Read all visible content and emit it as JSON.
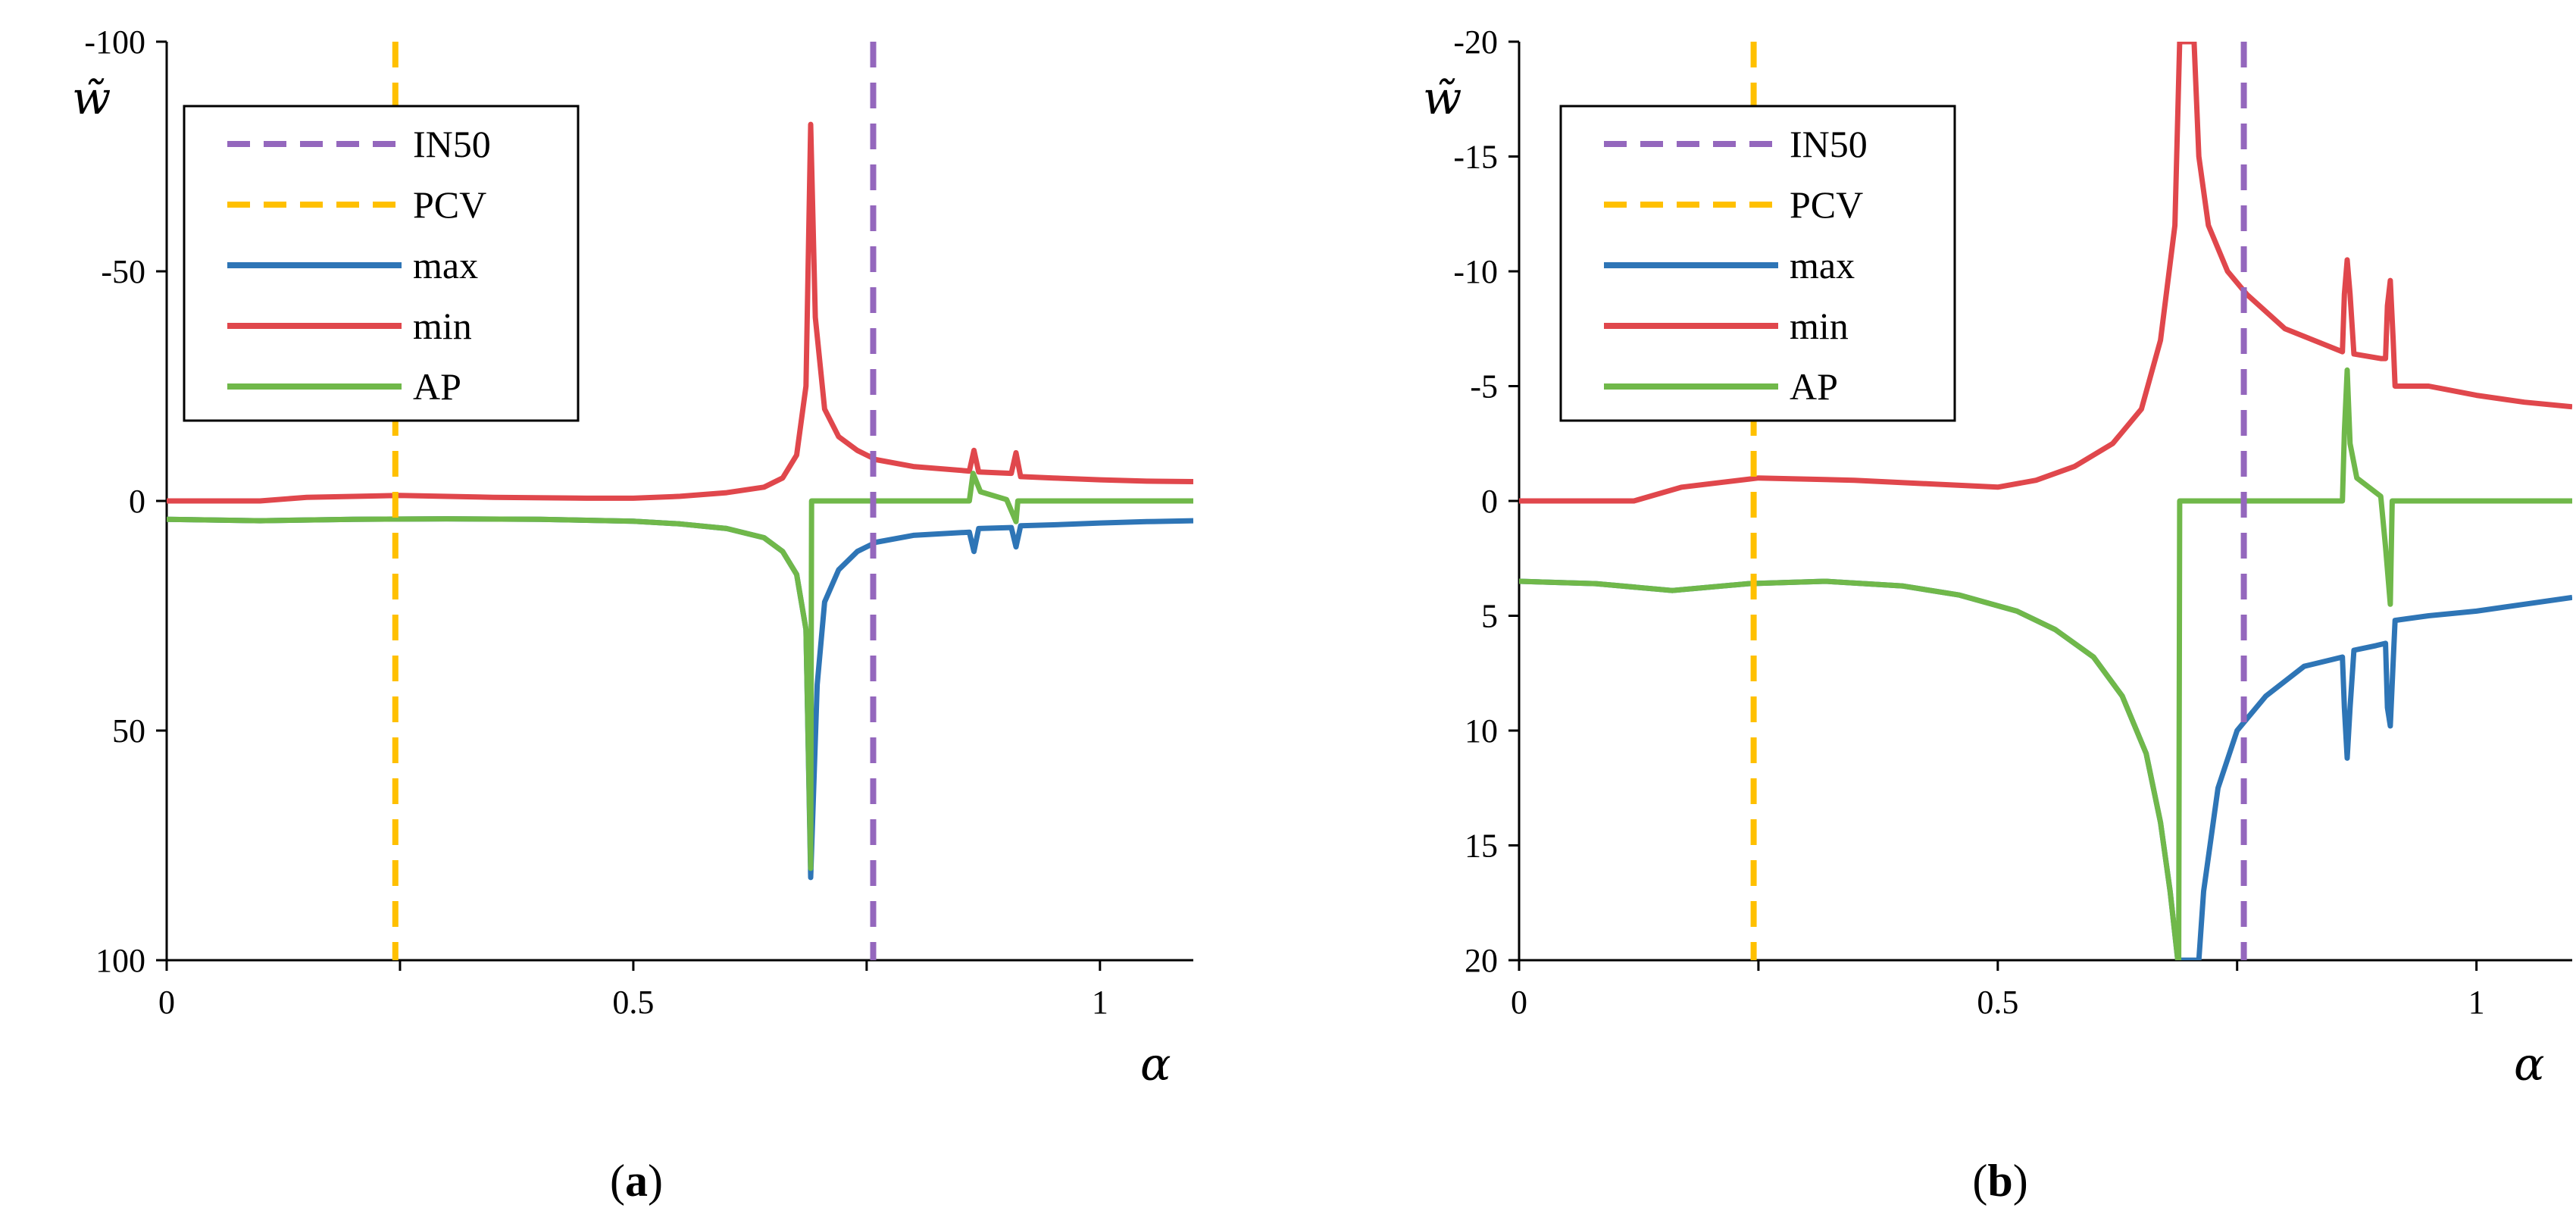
{
  "chart_data": [
    {
      "type": "line",
      "caption": "a",
      "xlabel": "α",
      "ylabel": "w̃",
      "xlim": [
        0,
        1.1
      ],
      "ylim": [
        100,
        -100
      ],
      "y_inverted": true,
      "x_ticks": [
        "0",
        "0.5",
        "1"
      ],
      "y_ticks": [
        "-100",
        "-50",
        "0",
        "50",
        "100"
      ],
      "x_tick_values": [
        0,
        0.5,
        1
      ],
      "y_tick_values": [
        -100,
        -50,
        0,
        50,
        100
      ],
      "legend_position": "top-left",
      "vlines": [
        {
          "name": "IN50",
          "x": 0.757,
          "color": "#9467bd",
          "style": "dashed"
        },
        {
          "name": "PCV",
          "x": 0.245,
          "color": "#ffc000",
          "style": "dashed"
        }
      ],
      "series": [
        {
          "name": "max",
          "color": "#2e75b6",
          "points": [
            [
              0,
              4
            ],
            [
              0.1,
              4.3
            ],
            [
              0.2,
              4
            ],
            [
              0.3,
              3.9
            ],
            [
              0.4,
              4
            ],
            [
              0.5,
              4.4
            ],
            [
              0.55,
              5
            ],
            [
              0.6,
              6
            ],
            [
              0.64,
              8
            ],
            [
              0.66,
              11
            ],
            [
              0.675,
              16
            ],
            [
              0.685,
              28
            ],
            [
              0.69,
              82
            ],
            [
              0.697,
              40
            ],
            [
              0.705,
              22
            ],
            [
              0.72,
              15
            ],
            [
              0.74,
              11
            ],
            [
              0.76,
              9
            ],
            [
              0.8,
              7.5
            ],
            [
              0.86,
              6.8
            ],
            [
              0.865,
              11
            ],
            [
              0.87,
              6
            ],
            [
              0.905,
              5.8
            ],
            [
              0.91,
              10
            ],
            [
              0.915,
              5.4
            ],
            [
              0.95,
              5.2
            ],
            [
              1.0,
              4.8
            ],
            [
              1.05,
              4.5
            ],
            [
              1.1,
              4.3
            ]
          ]
        },
        {
          "name": "min",
          "color": "#e0474c",
          "points": [
            [
              0,
              0
            ],
            [
              0.1,
              0
            ],
            [
              0.15,
              -0.8
            ],
            [
              0.25,
              -1.2
            ],
            [
              0.35,
              -0.8
            ],
            [
              0.45,
              -0.6
            ],
            [
              0.5,
              -0.6
            ],
            [
              0.55,
              -1
            ],
            [
              0.6,
              -1.8
            ],
            [
              0.64,
              -3
            ],
            [
              0.66,
              -5
            ],
            [
              0.675,
              -10
            ],
            [
              0.685,
              -25
            ],
            [
              0.69,
              -82
            ],
            [
              0.695,
              -40
            ],
            [
              0.705,
              -20
            ],
            [
              0.72,
              -14
            ],
            [
              0.74,
              -11
            ],
            [
              0.76,
              -9
            ],
            [
              0.8,
              -7.5
            ],
            [
              0.86,
              -6.5
            ],
            [
              0.865,
              -11
            ],
            [
              0.87,
              -6.3
            ],
            [
              0.905,
              -6
            ],
            [
              0.91,
              -10.5
            ],
            [
              0.915,
              -5.3
            ],
            [
              0.95,
              -5
            ],
            [
              1.0,
              -4.6
            ],
            [
              1.05,
              -4.3
            ],
            [
              1.1,
              -4.2
            ]
          ]
        },
        {
          "name": "AP",
          "color": "#70b84a",
          "points": [
            [
              0,
              4
            ],
            [
              0.1,
              4.3
            ],
            [
              0.2,
              4
            ],
            [
              0.3,
              3.9
            ],
            [
              0.4,
              4
            ],
            [
              0.5,
              4.4
            ],
            [
              0.55,
              5
            ],
            [
              0.6,
              6
            ],
            [
              0.64,
              8
            ],
            [
              0.66,
              11
            ],
            [
              0.675,
              16
            ],
            [
              0.685,
              28
            ],
            [
              0.69,
              80
            ],
            [
              0.691,
              0
            ],
            [
              0.86,
              0
            ],
            [
              0.864,
              -6
            ],
            [
              0.872,
              -2
            ],
            [
              0.9,
              -0.3
            ],
            [
              0.91,
              4.5
            ],
            [
              0.912,
              0
            ],
            [
              1.1,
              0
            ]
          ]
        }
      ]
    },
    {
      "type": "line",
      "caption": "b",
      "xlabel": "α",
      "ylabel": "w̃",
      "xlim": [
        0,
        1.1
      ],
      "ylim": [
        20,
        -20
      ],
      "y_inverted": true,
      "x_ticks": [
        "0",
        "0.5",
        "1"
      ],
      "y_ticks": [
        "-20",
        "-15",
        "-10",
        "-5",
        "0",
        "5",
        "10",
        "15",
        "20"
      ],
      "x_tick_values": [
        0,
        0.5,
        1
      ],
      "y_tick_values": [
        -20,
        -15,
        -10,
        -5,
        0,
        5,
        10,
        15,
        20
      ],
      "legend_position": "top-left",
      "vlines": [
        {
          "name": "IN50",
          "x": 0.757,
          "color": "#9467bd",
          "style": "dashed"
        },
        {
          "name": "PCV",
          "x": 0.245,
          "color": "#ffc000",
          "style": "dashed"
        }
      ],
      "series": [
        {
          "name": "max",
          "color": "#2e75b6",
          "points": [
            [
              0,
              3.5
            ],
            [
              0.08,
              3.6
            ],
            [
              0.16,
              3.9
            ],
            [
              0.24,
              3.6
            ],
            [
              0.32,
              3.5
            ],
            [
              0.4,
              3.7
            ],
            [
              0.46,
              4.1
            ],
            [
              0.52,
              4.8
            ],
            [
              0.56,
              5.6
            ],
            [
              0.6,
              6.8
            ],
            [
              0.63,
              8.5
            ],
            [
              0.655,
              11
            ],
            [
              0.67,
              14
            ],
            [
              0.68,
              17
            ],
            [
              0.688,
              20
            ],
            [
              0.71,
              20
            ],
            [
              0.715,
              17
            ],
            [
              0.73,
              12.5
            ],
            [
              0.75,
              10
            ],
            [
              0.78,
              8.5
            ],
            [
              0.82,
              7.2
            ],
            [
              0.86,
              6.8
            ],
            [
              0.862,
              9
            ],
            [
              0.865,
              11.2
            ],
            [
              0.868,
              9
            ],
            [
              0.872,
              6.5
            ],
            [
              0.895,
              6.3
            ],
            [
              0.905,
              6.2
            ],
            [
              0.907,
              9
            ],
            [
              0.91,
              9.8
            ],
            [
              0.913,
              7
            ],
            [
              0.915,
              5.2
            ],
            [
              0.95,
              5
            ],
            [
              1.0,
              4.8
            ],
            [
              1.05,
              4.5
            ],
            [
              1.1,
              4.2
            ]
          ]
        },
        {
          "name": "min",
          "color": "#e0474c",
          "points": [
            [
              0,
              0
            ],
            [
              0.12,
              0
            ],
            [
              0.17,
              -0.6
            ],
            [
              0.25,
              -1
            ],
            [
              0.35,
              -0.9
            ],
            [
              0.45,
              -0.7
            ],
            [
              0.5,
              -0.6
            ],
            [
              0.54,
              -0.9
            ],
            [
              0.58,
              -1.5
            ],
            [
              0.62,
              -2.5
            ],
            [
              0.65,
              -4
            ],
            [
              0.67,
              -7
            ],
            [
              0.685,
              -12
            ],
            [
              0.69,
              -20
            ],
            [
              0.705,
              -20
            ],
            [
              0.71,
              -15
            ],
            [
              0.72,
              -12
            ],
            [
              0.74,
              -10
            ],
            [
              0.76,
              -9
            ],
            [
              0.8,
              -7.5
            ],
            [
              0.86,
              -6.5
            ],
            [
              0.862,
              -9
            ],
            [
              0.865,
              -10.5
            ],
            [
              0.868,
              -9
            ],
            [
              0.872,
              -6.4
            ],
            [
              0.9,
              -6.2
            ],
            [
              0.905,
              -6.2
            ],
            [
              0.907,
              -8.5
            ],
            [
              0.91,
              -9.6
            ],
            [
              0.913,
              -7
            ],
            [
              0.915,
              -5
            ],
            [
              0.95,
              -5
            ],
            [
              1.0,
              -4.6
            ],
            [
              1.05,
              -4.3
            ],
            [
              1.1,
              -4.1
            ]
          ]
        },
        {
          "name": "AP",
          "color": "#70b84a",
          "points": [
            [
              0,
              3.5
            ],
            [
              0.08,
              3.6
            ],
            [
              0.16,
              3.9
            ],
            [
              0.24,
              3.6
            ],
            [
              0.32,
              3.5
            ],
            [
              0.4,
              3.7
            ],
            [
              0.46,
              4.1
            ],
            [
              0.52,
              4.8
            ],
            [
              0.56,
              5.6
            ],
            [
              0.6,
              6.8
            ],
            [
              0.63,
              8.5
            ],
            [
              0.655,
              11
            ],
            [
              0.67,
              14
            ],
            [
              0.68,
              17
            ],
            [
              0.688,
              20
            ],
            [
              0.689,
              20
            ],
            [
              0.69,
              0
            ],
            [
              0.86,
              0
            ],
            [
              0.862,
              -3
            ],
            [
              0.865,
              -5.7
            ],
            [
              0.868,
              -2.5
            ],
            [
              0.875,
              -1
            ],
            [
              0.9,
              -0.2
            ],
            [
              0.905,
              2
            ],
            [
              0.91,
              4.5
            ],
            [
              0.912,
              0
            ],
            [
              1.1,
              0
            ]
          ]
        }
      ]
    }
  ]
}
